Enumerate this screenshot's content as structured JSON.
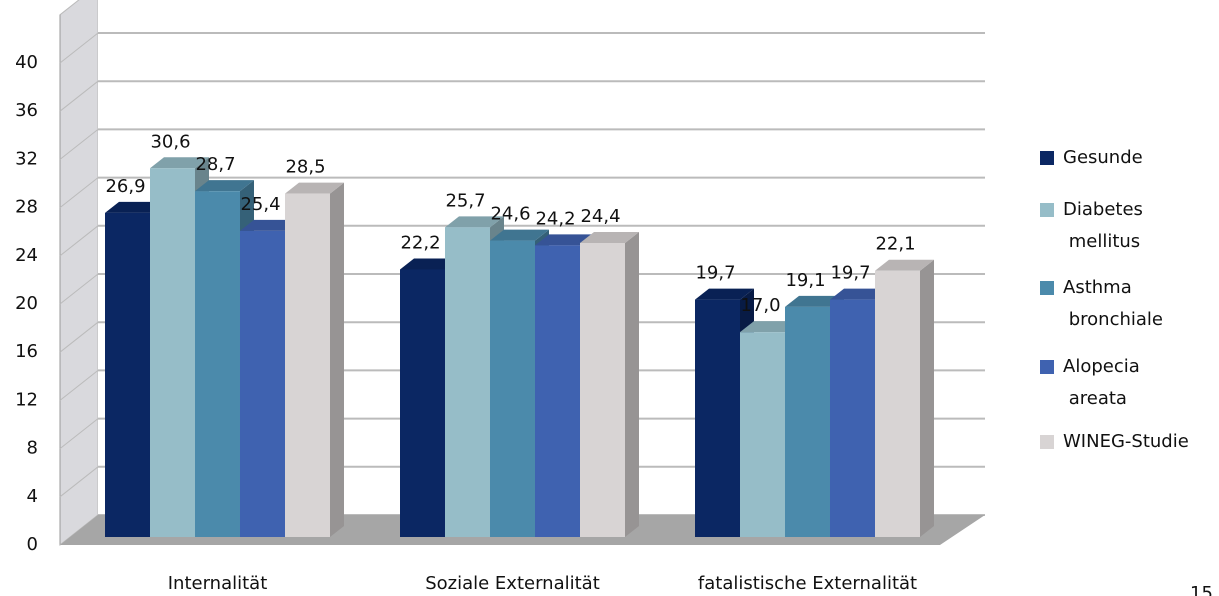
{
  "chart_data": {
    "type": "bar3d",
    "categories": [
      "Internalität",
      "Soziale Externalität",
      "fatalistische Externalität"
    ],
    "series": [
      {
        "name": "Gesunde",
        "color": "#0b2763",
        "values": [
          26.9,
          22.2,
          19.7
        ],
        "value_labels": [
          "26,9",
          "22,2",
          "19,7"
        ]
      },
      {
        "name": "Diabetes mellitus",
        "color": "#96bdc8",
        "values": [
          30.6,
          25.7,
          17.0
        ],
        "value_labels": [
          "30,6",
          "25,7",
          "17,0"
        ]
      },
      {
        "name": "Asthma bronchiale",
        "color": "#4b8aab",
        "values": [
          28.7,
          24.6,
          19.1
        ],
        "value_labels": [
          "28,7",
          "24,6",
          "19,1"
        ]
      },
      {
        "name": "Alopecia areata",
        "color": "#3f62b0",
        "values": [
          25.4,
          24.2,
          19.7
        ],
        "value_labels": [
          "25,4",
          "24,2",
          "19,7"
        ]
      },
      {
        "name": "WINEG-Studie",
        "color": "#d8d4d4",
        "values": [
          28.5,
          24.4,
          22.1
        ],
        "value_labels": [
          "28,5",
          "24,4",
          "22,1"
        ]
      }
    ],
    "ylim": [
      0,
      44
    ],
    "yticks": [
      0,
      4,
      8,
      12,
      16,
      20,
      24,
      28,
      32,
      36,
      40
    ],
    "grid": true,
    "legend": "right",
    "page_number": "15"
  }
}
